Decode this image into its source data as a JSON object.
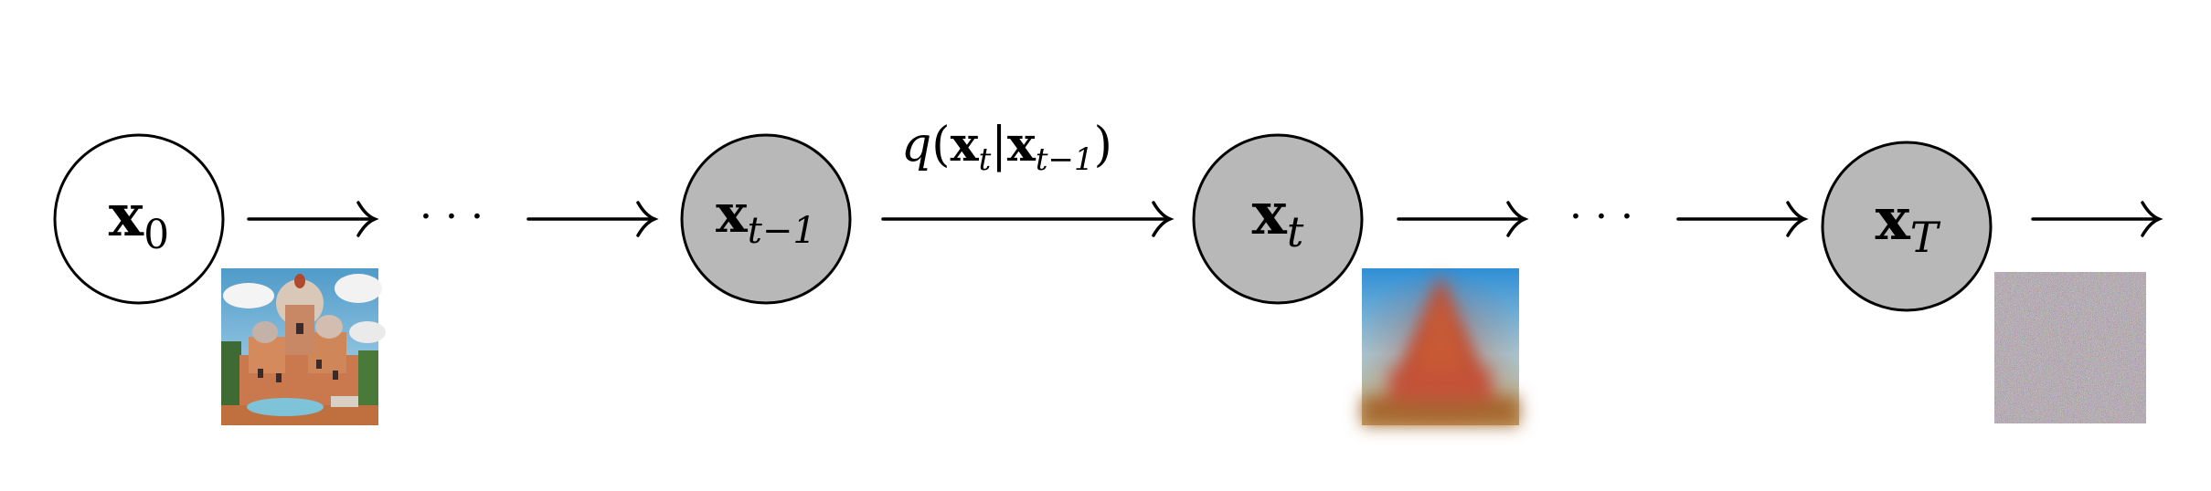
{
  "colors": {
    "observed_node_fill": "#ffffff",
    "latent_node_fill": "#b8b8b8",
    "stroke": "#000000"
  },
  "nodes": [
    {
      "id": "x0",
      "base": "x",
      "sub": "0",
      "sub_italic": false,
      "shaded": false
    },
    {
      "id": "x-t-minus-1",
      "base": "x",
      "sub": "t−1",
      "sub_italic": true,
      "shaded": true
    },
    {
      "id": "xt",
      "base": "x",
      "sub": "t",
      "sub_italic": true,
      "shaded": true
    },
    {
      "id": "xT",
      "base": "x",
      "sub": "T",
      "sub_italic": true,
      "shaded": true
    }
  ],
  "ellipsis": "· · ·",
  "transition_label": {
    "q": "q",
    "open": "(",
    "x1": "x",
    "x1_sub": "t",
    "bar": "|",
    "x2": "x",
    "x2_sub": "t−1",
    "close": ")"
  },
  "images": [
    {
      "name": "clean-image-thumbnail",
      "description_icon": "castle-image"
    },
    {
      "name": "blurred-image-thumbnail",
      "description_icon": "pyramid-image"
    },
    {
      "name": "noise-image-thumbnail",
      "description_icon": "noise-image"
    }
  ]
}
